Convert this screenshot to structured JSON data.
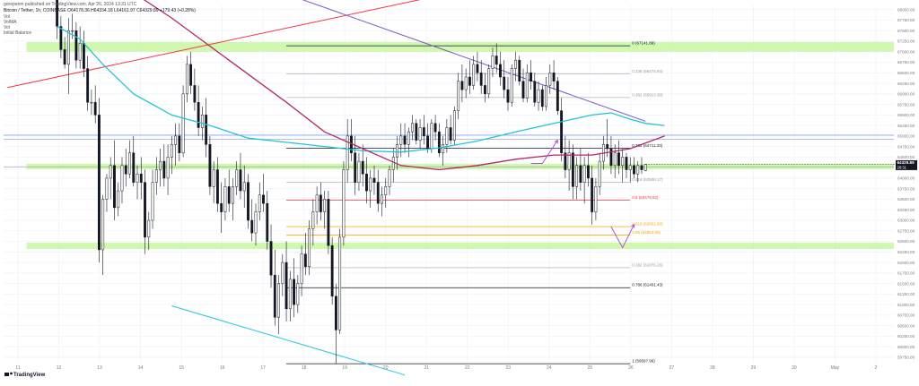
{
  "header": {
    "publisher": "gorepanm published on TradingView.com, Apr 26, 2024 13:31 UTC",
    "symbol_line": "Bitcoin / Tether, 1h, COINBASE  O64178.36 H64334.18 L64161.97 C64329.89 +179.43 (+0.28%)",
    "indicator_lines": [
      "Vol",
      "VolMA",
      "Vol",
      "Initial Balance"
    ]
  },
  "footer": {
    "brand": "TradingView",
    "logo_icon": "tradingview-logo-icon"
  },
  "colors": {
    "background": "#ffffff",
    "grid": "#f0f3fa",
    "candle": "#131722",
    "ema_fast": "#22c4d6",
    "ema_slow": "#b2286a",
    "trend_red": "#f23645",
    "trend_purple": "#7e57c2",
    "trend_cyan": "#26c6da",
    "zone_green": "#c8f7a0",
    "arrow": "#b14fd8",
    "price_line": "#2962ff"
  },
  "chart_data": {
    "type": "candlestick",
    "symbol": "BTCUSDT",
    "timeframe": "1h",
    "y_axis": {
      "ticks": [
        "68000.00",
        "67750.00",
        "67500.00",
        "67250.00",
        "67000.00",
        "66750.00",
        "66500.00",
        "66250.00",
        "66000.00",
        "65750.00",
        "65500.00",
        "65250.00",
        "65000.00",
        "64750.00",
        "64500.00",
        "64250.00",
        "64000.00",
        "63750.00",
        "63500.00",
        "63250.00",
        "63000.00",
        "62750.00",
        "62500.00",
        "62250.00",
        "62000.00",
        "61750.00",
        "61500.00",
        "61250.00",
        "61000.00",
        "60750.00",
        "60500.00",
        "60250.00",
        "60000.00",
        "59750.00"
      ]
    },
    "x_axis": {
      "ticks": [
        "11",
        "12",
        "13",
        "14",
        "15",
        "16",
        "17",
        "18",
        "19",
        "20",
        "21",
        "22",
        "23",
        "24",
        "25",
        "26",
        "27",
        "28",
        "29",
        "30",
        "May",
        "2"
      ]
    },
    "last_price": {
      "value": "64329.89",
      "countdown": "28:31",
      "color": "#131722"
    },
    "levels": [
      {
        "label": "0 (67141.89)",
        "price": 67141.89,
        "color": "#131722"
      },
      {
        "label": "0.236 (66474.94)",
        "price": 66474.94,
        "color": "#b2b5be"
      },
      {
        "label": "0.382 (65913.30)",
        "price": 65913.3,
        "color": "#b2b5be"
      },
      {
        "label": "0.382 (64711.33)",
        "price": 64711.33,
        "color": "#131722"
      },
      {
        "label": "0.618 (63906.17)",
        "price": 63906.17,
        "color": "#b2b5be"
      },
      {
        "label": "0.5 (63478.52)",
        "price": 63478.52,
        "color": "#f23645"
      },
      {
        "label": "0.618 (62851.80)",
        "price": 62851.8,
        "color": "#f7a600"
      },
      {
        "label": "0.65 (62653.06)",
        "price": 62653.06,
        "color": "#f7a600"
      },
      {
        "label": "0.382 (61876.26)",
        "price": 61876.26,
        "color": "#b2b5be"
      },
      {
        "label": "0.786 (61401.43)",
        "price": 61401.43,
        "color": "#131722"
      },
      {
        "label": "1 (59597.99)",
        "price": 59597.99,
        "color": "#131722"
      }
    ],
    "zones": [
      {
        "from": 67000,
        "to": 67230
      },
      {
        "from": 64210,
        "to": 64340
      },
      {
        "from": 62320,
        "to": 62470
      }
    ],
    "price_lines": [
      65020,
      64920,
      64270
    ],
    "candles_ohlc": [
      [
        68400,
        68900,
        67300,
        67600
      ],
      [
        67600,
        67850,
        66850,
        67050
      ],
      [
        67050,
        67350,
        66600,
        66700
      ],
      [
        66700,
        67800,
        66000,
        67500
      ],
      [
        67500,
        67900,
        67300,
        67500
      ],
      [
        67500,
        67700,
        66600,
        66800
      ],
      [
        66800,
        67600,
        66600,
        67200
      ],
      [
        67200,
        67500,
        66400,
        66600
      ],
      [
        66600,
        66900,
        65600,
        65800
      ],
      [
        65800,
        66100,
        65500,
        65800
      ],
      [
        65800,
        66200,
        65300,
        65500
      ],
      [
        65500,
        65900,
        62000,
        62300
      ],
      [
        62300,
        63600,
        61700,
        63500
      ],
      [
        63500,
        64100,
        63200,
        64000
      ],
      [
        64000,
        64500,
        63500,
        64300
      ],
      [
        64300,
        64900,
        63000,
        63300
      ],
      [
        63300,
        63900,
        63100,
        63700
      ],
      [
        63700,
        64500,
        63400,
        64300
      ],
      [
        64300,
        64700,
        63800,
        64100
      ],
      [
        64100,
        64900,
        64000,
        64600
      ],
      [
        64600,
        65000,
        63800,
        63900
      ],
      [
        63900,
        64300,
        63500,
        64100
      ],
      [
        64100,
        64500,
        63500,
        63900
      ],
      [
        63900,
        64200,
        62200,
        62600
      ],
      [
        62600,
        63200,
        62300,
        63000
      ],
      [
        63000,
        64200,
        62800,
        63900
      ],
      [
        63900,
        64500,
        63600,
        64200
      ],
      [
        64200,
        64700,
        63800,
        64400
      ],
      [
        64400,
        64800,
        63800,
        64000
      ],
      [
        64000,
        64800,
        63600,
        64500
      ],
      [
        64500,
        65000,
        64100,
        64800
      ],
      [
        64800,
        65300,
        64300,
        65000
      ],
      [
        65000,
        65300,
        64400,
        64600
      ],
      [
        64600,
        66200,
        64500,
        66000
      ],
      [
        66000,
        66900,
        65800,
        66700
      ],
      [
        66700,
        67000,
        66000,
        66200
      ],
      [
        66200,
        66600,
        65600,
        65800
      ],
      [
        65800,
        66200,
        65000,
        65200
      ],
      [
        65200,
        65700,
        64900,
        65500
      ],
      [
        65500,
        65900,
        64500,
        64800
      ],
      [
        64800,
        65000,
        63600,
        63800
      ],
      [
        63800,
        64400,
        63400,
        64200
      ],
      [
        64200,
        64500,
        63200,
        63400
      ],
      [
        63400,
        63900,
        62700,
        63200
      ],
      [
        63200,
        64000,
        63000,
        63800
      ],
      [
        63800,
        64200,
        63200,
        63400
      ],
      [
        63400,
        64000,
        63000,
        63800
      ],
      [
        63800,
        64400,
        63600,
        64200
      ],
      [
        64200,
        64600,
        63500,
        63700
      ],
      [
        63700,
        64300,
        63300,
        63900
      ],
      [
        63900,
        64100,
        62800,
        63000
      ],
      [
        63000,
        63500,
        62500,
        62700
      ],
      [
        62700,
        63400,
        62400,
        63200
      ],
      [
        63200,
        63900,
        63000,
        63600
      ],
      [
        63600,
        64100,
        63200,
        63400
      ],
      [
        63400,
        63700,
        62300,
        62500
      ],
      [
        62500,
        62900,
        61400,
        61700
      ],
      [
        61700,
        62300,
        60500,
        60700
      ],
      [
        60700,
        61700,
        60300,
        61500
      ],
      [
        61500,
        62200,
        61200,
        62000
      ],
      [
        62000,
        62500,
        60600,
        60900
      ],
      [
        60900,
        61800,
        60600,
        61600
      ],
      [
        61600,
        62100,
        60700,
        61000
      ],
      [
        61000,
        61700,
        60800,
        61500
      ],
      [
        61500,
        62400,
        61200,
        62200
      ],
      [
        62200,
        62700,
        61700,
        61900
      ],
      [
        61900,
        63000,
        61700,
        62800
      ],
      [
        62800,
        63500,
        62400,
        63200
      ],
      [
        63200,
        63800,
        62900,
        63600
      ],
      [
        63600,
        63900,
        63000,
        63200
      ],
      [
        63200,
        63700,
        62800,
        63500
      ],
      [
        63500,
        63700,
        62200,
        62400
      ],
      [
        62400,
        62600,
        61000,
        61200
      ],
      [
        61200,
        61500,
        59600,
        60400
      ],
      [
        60400,
        62800,
        60300,
        62600
      ],
      [
        62600,
        64400,
        62400,
        64200
      ],
      [
        64200,
        65400,
        63900,
        65000
      ],
      [
        65000,
        65400,
        64400,
        64600
      ],
      [
        64600,
        65000,
        63600,
        63900
      ],
      [
        63900,
        64600,
        63700,
        64400
      ],
      [
        64400,
        64800,
        63800,
        64100
      ],
      [
        64100,
        64500,
        63400,
        63700
      ],
      [
        63700,
        64200,
        63300,
        64000
      ],
      [
        64000,
        64300,
        63600,
        63900
      ],
      [
        63900,
        64200,
        63200,
        63400
      ],
      [
        63400,
        63800,
        63100,
        63600
      ],
      [
        63600,
        64000,
        63300,
        63800
      ],
      [
        63800,
        64300,
        63600,
        64200
      ],
      [
        64200,
        64700,
        63900,
        64500
      ],
      [
        64500,
        65000,
        64200,
        64800
      ],
      [
        64800,
        65300,
        64500,
        65000
      ],
      [
        65000,
        65300,
        64600,
        64800
      ],
      [
        64800,
        65200,
        64500,
        65100
      ],
      [
        65100,
        65500,
        64900,
        65300
      ],
      [
        65300,
        65400,
        64800,
        64900
      ],
      [
        64900,
        65400,
        64700,
        65200
      ],
      [
        65200,
        65500,
        64800,
        65000
      ],
      [
        65000,
        65300,
        64600,
        64700
      ],
      [
        64700,
        65400,
        64600,
        65300
      ],
      [
        65300,
        65500,
        64900,
        65100
      ],
      [
        65100,
        65300,
        64500,
        64600
      ],
      [
        64600,
        65000,
        64300,
        64800
      ],
      [
        64800,
        65400,
        64600,
        65200
      ],
      [
        65200,
        65500,
        64800,
        64900
      ],
      [
        64900,
        65700,
        64800,
        65600
      ],
      [
        65600,
        66500,
        65400,
        66300
      ],
      [
        66300,
        66700,
        65800,
        66100
      ],
      [
        66100,
        66600,
        65900,
        66400
      ],
      [
        66400,
        66800,
        66000,
        66200
      ],
      [
        66200,
        66900,
        66100,
        66700
      ],
      [
        66700,
        67000,
        66300,
        66500
      ],
      [
        66500,
        66800,
        66000,
        66200
      ],
      [
        66200,
        66500,
        65800,
        66000
      ],
      [
        66000,
        66700,
        65900,
        66600
      ],
      [
        66600,
        67100,
        66400,
        66900
      ],
      [
        66900,
        67200,
        66500,
        66700
      ],
      [
        66700,
        67000,
        66200,
        66400
      ],
      [
        66400,
        66800,
        65900,
        66100
      ],
      [
        66100,
        66400,
        65600,
        65800
      ],
      [
        65800,
        66700,
        65700,
        66600
      ],
      [
        66600,
        67000,
        66300,
        66800
      ],
      [
        66800,
        66900,
        66200,
        66300
      ],
      [
        66300,
        66600,
        65800,
        65900
      ],
      [
        65900,
        66700,
        65800,
        66500
      ],
      [
        66500,
        66800,
        66100,
        66300
      ],
      [
        66300,
        66500,
        65700,
        65800
      ],
      [
        65800,
        66300,
        65600,
        66100
      ],
      [
        66100,
        66200,
        65600,
        65700
      ],
      [
        65700,
        66400,
        65600,
        66200
      ],
      [
        66200,
        66700,
        66000,
        66500
      ],
      [
        66500,
        66800,
        66100,
        66300
      ],
      [
        66300,
        66400,
        65500,
        65600
      ],
      [
        65600,
        65900,
        64400,
        64600
      ],
      [
        64600,
        65000,
        64000,
        64200
      ],
      [
        64200,
        64900,
        63700,
        64600
      ],
      [
        64600,
        64800,
        63500,
        63800
      ],
      [
        63800,
        64500,
        63500,
        64300
      ],
      [
        64300,
        64700,
        63700,
        63900
      ],
      [
        63900,
        64500,
        63400,
        64300
      ],
      [
        64300,
        64600,
        63800,
        64000
      ],
      [
        64000,
        64300,
        62900,
        63200
      ],
      [
        63200,
        64000,
        63000,
        63800
      ],
      [
        63800,
        64600,
        63600,
        64400
      ],
      [
        64400,
        65000,
        64200,
        64800
      ],
      [
        64800,
        65400,
        64500,
        64700
      ],
      [
        64700,
        65000,
        64100,
        64300
      ],
      [
        64300,
        64800,
        64000,
        64600
      ],
      [
        64600,
        64900,
        64100,
        64300
      ],
      [
        64300,
        64700,
        63900,
        64500
      ],
      [
        64500,
        64600,
        64000,
        64200
      ],
      [
        64200,
        64500,
        63900,
        64300
      ],
      [
        64300,
        64500,
        64000,
        64100
      ],
      [
        64100,
        64400,
        63900,
        64300
      ],
      [
        64300,
        64500,
        64100,
        64200
      ],
      [
        64178.36,
        64334.18,
        64161.97,
        64329.89
      ]
    ],
    "series": [
      {
        "name": "EMA fast",
        "color": "#22c4d6",
        "points": [
          [
            0,
            67600
          ],
          [
            6,
            67300
          ],
          [
            12,
            66700
          ],
          [
            20,
            66000
          ],
          [
            30,
            65500
          ],
          [
            40,
            65250
          ],
          [
            50,
            64950
          ],
          [
            60,
            64850
          ],
          [
            70,
            64750
          ],
          [
            80,
            64650
          ],
          [
            90,
            64620
          ],
          [
            100,
            64720
          ],
          [
            110,
            64880
          ],
          [
            120,
            65100
          ],
          [
            130,
            65300
          ],
          [
            140,
            65500
          ],
          [
            145,
            65550
          ],
          [
            150,
            65400
          ],
          [
            154,
            65300
          ],
          [
            159,
            65250
          ]
        ]
      },
      {
        "name": "EMA slow",
        "color": "#b2286a",
        "points": [
          [
            0,
            69500
          ],
          [
            15,
            68700
          ],
          [
            30,
            67800
          ],
          [
            45,
            66800
          ],
          [
            60,
            65800
          ],
          [
            70,
            65100
          ],
          [
            80,
            64700
          ],
          [
            90,
            64300
          ],
          [
            100,
            64200
          ],
          [
            110,
            64300
          ],
          [
            120,
            64450
          ],
          [
            130,
            64550
          ],
          [
            140,
            64550
          ],
          [
            150,
            64700
          ],
          [
            159,
            65000
          ]
        ]
      }
    ],
    "trendlines": [
      {
        "color": "#f23645",
        "from": [
          -13,
          66150
        ],
        "to": [
          119,
          68700
        ]
      },
      {
        "color": "#7e57c2",
        "from": [
          28,
          69400
        ],
        "to": [
          154,
          65350
        ]
      },
      {
        "color": "#26c6da",
        "from": [
          30,
          60970
        ],
        "to": [
          91,
          59330
        ]
      }
    ],
    "arrows": [
      {
        "color": "#b14fd8",
        "points": [
          [
            124,
            64350
          ],
          [
            127,
            64350
          ],
          [
            131,
            64900
          ]
        ]
      },
      {
        "color": "#b14fd8",
        "points": [
          [
            145,
            62850
          ],
          [
            148,
            62350
          ],
          [
            151,
            62900
          ]
        ]
      }
    ]
  }
}
